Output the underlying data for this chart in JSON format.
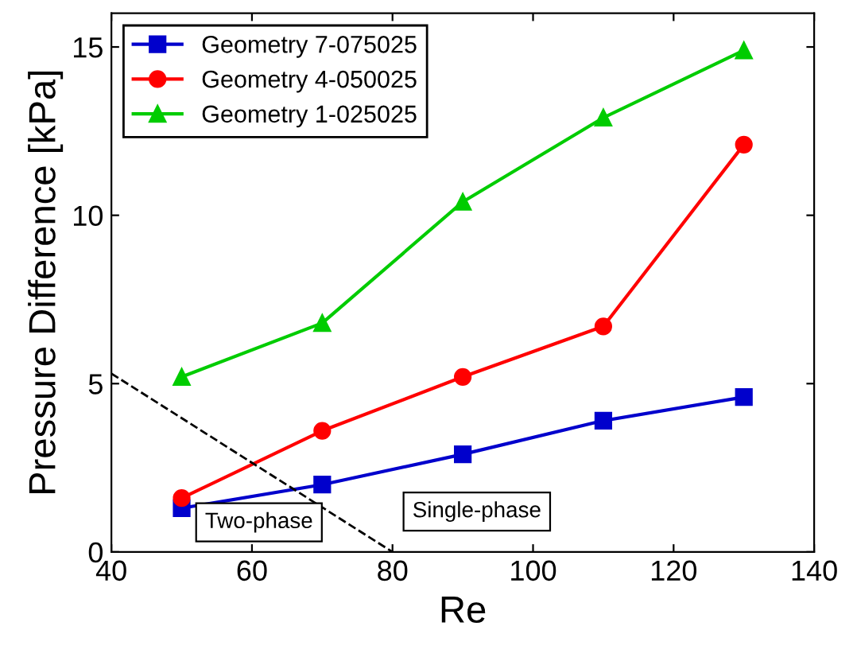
{
  "chart_data": {
    "type": "line",
    "xlabel": "Re",
    "ylabel": "Pressure Difference [kPa]",
    "xlim": [
      40,
      140
    ],
    "xticks": [
      40,
      60,
      80,
      100,
      120,
      140
    ],
    "ylim": [
      0,
      16
    ],
    "yticks": [
      0,
      5,
      10,
      15
    ],
    "grid": false,
    "legend": "top left",
    "series": [
      {
        "name": "Geometry 7-075025",
        "color": "#0000cc",
        "marker": "square",
        "x": [
          50,
          70,
          90,
          110,
          130
        ],
        "values": [
          1.3,
          2.0,
          2.9,
          3.9,
          4.6
        ]
      },
      {
        "name": "Geometry 4-050025",
        "color": "#ff0000",
        "marker": "circle",
        "x": [
          50,
          70,
          90,
          110,
          130
        ],
        "values": [
          1.6,
          3.6,
          5.2,
          6.7,
          12.1
        ]
      },
      {
        "name": "Geometry 1-025025",
        "color": "#00cc00",
        "marker": "triangle",
        "x": [
          50,
          70,
          90,
          110,
          130
        ],
        "values": [
          5.2,
          6.8,
          10.4,
          12.9,
          14.9
        ]
      },
      {
        "color": "#000000",
        "marker": "none",
        "line_style": "dashed",
        "x": [
          40,
          80
        ],
        "values": [
          5.3,
          0
        ]
      }
    ],
    "annotations": [
      "Two-phase",
      "Single-phase"
    ]
  }
}
